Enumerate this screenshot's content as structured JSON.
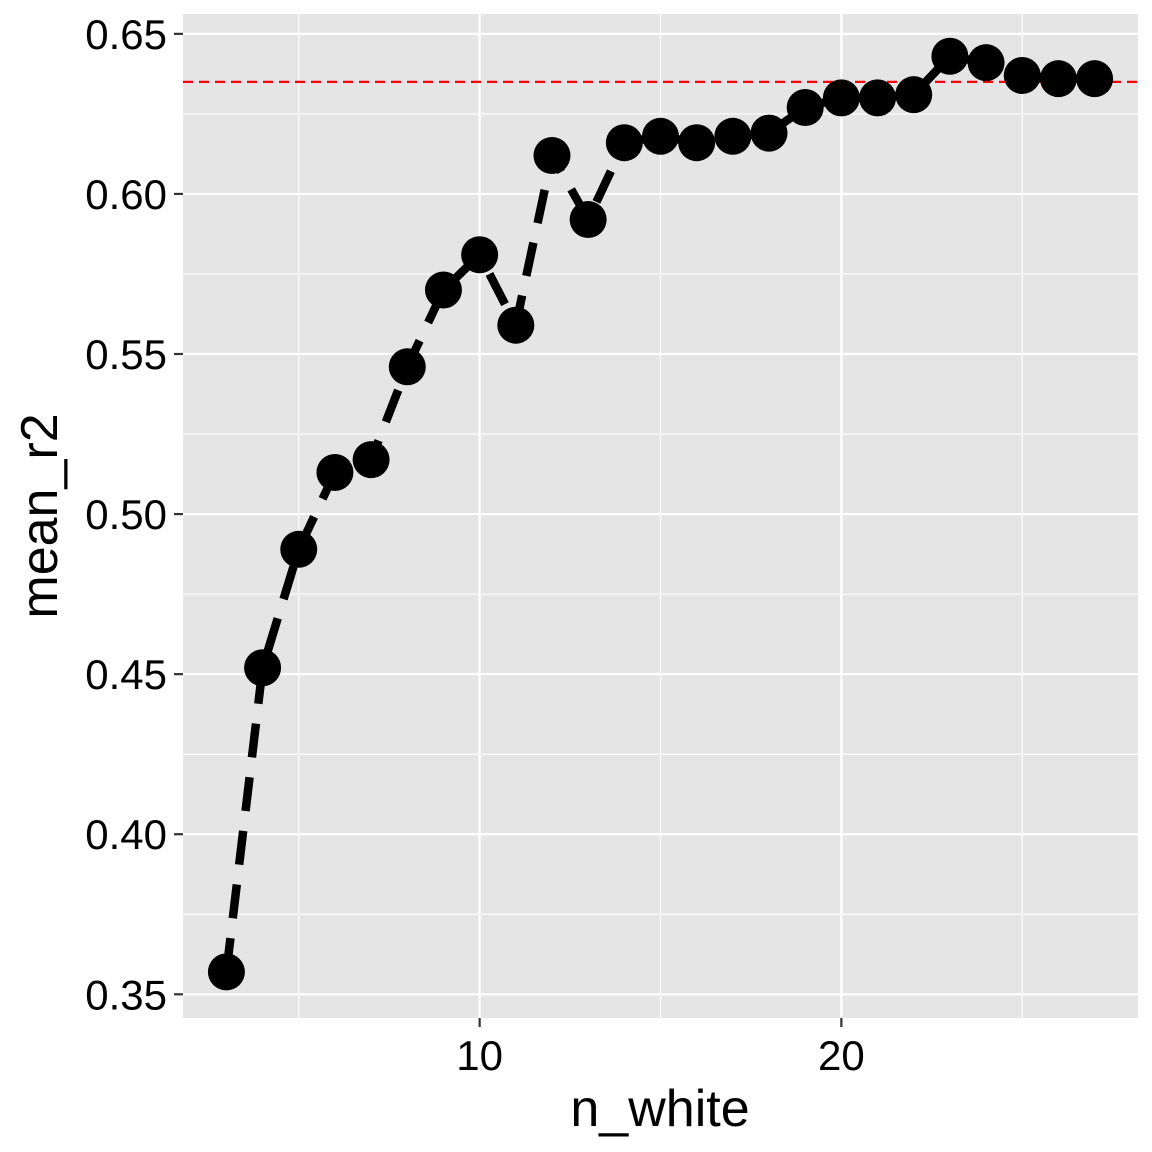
{
  "chart_data": {
    "type": "line",
    "title": "",
    "xlabel": "n_white",
    "ylabel": "mean_r2",
    "xlim": [
      1.8,
      28.2
    ],
    "ylim": [
      0.3426,
      0.6562
    ],
    "x_ticks": [
      10,
      20
    ],
    "x_tick_labels": [
      "10",
      "20"
    ],
    "x_minor_ticks": [
      5,
      15,
      25
    ],
    "y_ticks": [
      0.35,
      0.4,
      0.45,
      0.5,
      0.55,
      0.6,
      0.65
    ],
    "y_tick_labels": [
      "0.35",
      "0.40",
      "0.45",
      "0.50",
      "0.55",
      "0.60",
      "0.65"
    ],
    "y_minor_ticks": [
      0.375,
      0.425,
      0.475,
      0.525,
      0.575,
      0.625
    ],
    "grid": true,
    "series": [
      {
        "line_style": "dashed",
        "markers": "filled-circle",
        "x": [
          3,
          4,
          5,
          6,
          7,
          8,
          9,
          10,
          11,
          12,
          13,
          14,
          15,
          16,
          17,
          18,
          19,
          20,
          21,
          22,
          23,
          24,
          25,
          26,
          27
        ],
        "y": [
          0.357,
          0.452,
          0.489,
          0.513,
          0.517,
          0.546,
          0.57,
          0.581,
          0.559,
          0.612,
          0.592,
          0.616,
          0.618,
          0.616,
          0.618,
          0.619,
          0.627,
          0.63,
          0.63,
          0.631,
          0.643,
          0.641,
          0.637,
          0.636,
          0.636
        ]
      }
    ],
    "reference_line": {
      "orientation": "horizontal",
      "y": 0.635,
      "line_style": "dashed"
    },
    "colors": {
      "panel_background": "#e5e5e5",
      "grid_major": "#ffffff",
      "grid_minor": "#f2f2f2",
      "series": "#000000",
      "reference_line": "#ff0000",
      "tick_mark": "#333333"
    }
  }
}
